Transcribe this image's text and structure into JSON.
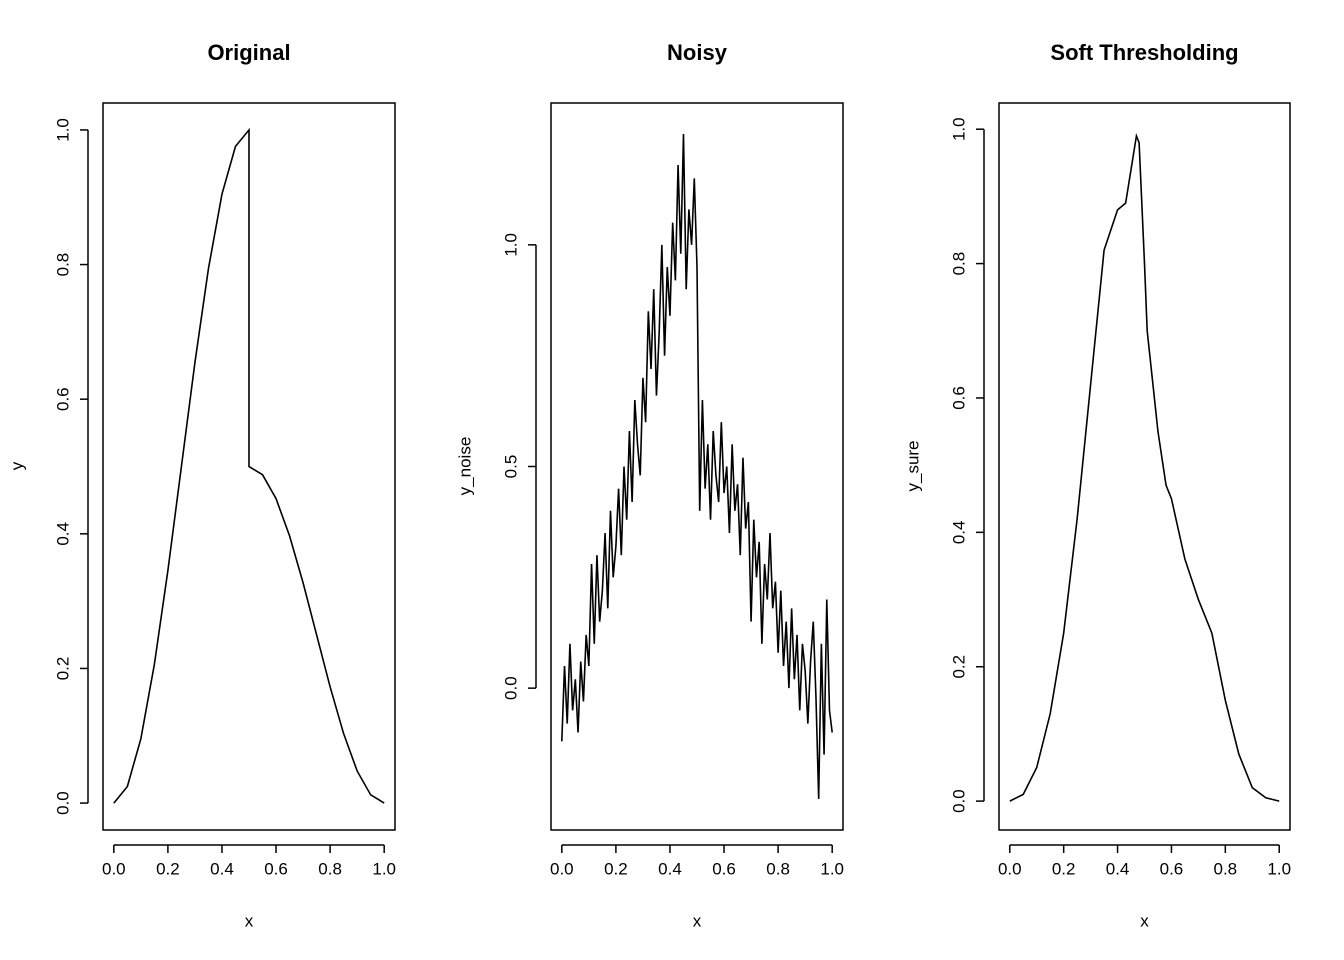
{
  "chart_data": [
    {
      "type": "line",
      "title": "Original",
      "x_label": "x",
      "y_label": "y",
      "x": [
        0,
        0.05,
        0.1,
        0.15,
        0.2,
        0.25,
        0.3,
        0.35,
        0.4,
        0.45,
        0.5,
        0.5,
        0.55,
        0.6,
        0.65,
        0.7,
        0.75,
        0.8,
        0.85,
        0.9,
        0.95,
        1
      ],
      "values": [
        0,
        0.0245,
        0.0955,
        0.2061,
        0.3455,
        0.5,
        0.6545,
        0.7939,
        0.9045,
        0.9755,
        1,
        0.5,
        0.4878,
        0.4523,
        0.3969,
        0.3273,
        0.25,
        0.1727,
        0.1031,
        0.0477,
        0.0122,
        0
      ],
      "color": "#000000",
      "xlim": [
        -0.04,
        1.04
      ],
      "ylim": [
        -0.04,
        1.04
      ],
      "xticks": [
        {
          "value": 0,
          "label": "0.0"
        },
        0.2,
        0.4,
        0.6,
        0.8,
        {
          "value": 1,
          "label": "1.0"
        }
      ],
      "yticks": [
        {
          "value": 0,
          "label": "0.0"
        },
        0.2,
        0.4,
        0.6,
        0.8,
        {
          "value": 1,
          "label": "1.0"
        }
      ]
    },
    {
      "type": "line",
      "title": "Noisy",
      "x_label": "x",
      "y_label": "y_noise",
      "x": [
        0,
        0.01,
        0.02,
        0.03,
        0.04,
        0.05,
        0.06,
        0.07,
        0.08,
        0.09,
        0.1,
        0.11,
        0.12,
        0.13,
        0.14,
        0.15,
        0.16,
        0.17,
        0.18,
        0.19,
        0.2,
        0.21,
        0.22,
        0.23,
        0.24,
        0.25,
        0.26,
        0.27,
        0.28,
        0.29,
        0.3,
        0.31,
        0.32,
        0.33,
        0.34,
        0.35,
        0.36,
        0.37,
        0.38,
        0.39,
        0.4,
        0.41,
        0.42,
        0.43,
        0.44,
        0.45,
        0.46,
        0.47,
        0.48,
        0.49,
        0.5,
        0.51,
        0.52,
        0.53,
        0.54,
        0.55,
        0.56,
        0.57,
        0.58,
        0.59,
        0.6,
        0.61,
        0.62,
        0.63,
        0.64,
        0.65,
        0.66,
        0.67,
        0.68,
        0.69,
        0.7,
        0.71,
        0.72,
        0.73,
        0.74,
        0.75,
        0.76,
        0.77,
        0.78,
        0.79,
        0.8,
        0.81,
        0.82,
        0.83,
        0.84,
        0.85,
        0.86,
        0.87,
        0.88,
        0.89,
        0.9,
        0.91,
        0.92,
        0.93,
        0.94,
        0.95,
        0.96,
        0.97,
        0.98,
        0.99,
        1
      ],
      "values": [
        -0.12,
        0.05,
        -0.08,
        0.1,
        -0.05,
        0.02,
        -0.1,
        0.06,
        -0.03,
        0.12,
        0.05,
        0.28,
        0.1,
        0.3,
        0.15,
        0.22,
        0.35,
        0.18,
        0.4,
        0.25,
        0.32,
        0.45,
        0.3,
        0.5,
        0.38,
        0.58,
        0.42,
        0.65,
        0.55,
        0.48,
        0.7,
        0.6,
        0.85,
        0.72,
        0.9,
        0.66,
        0.8,
        1.0,
        0.75,
        0.95,
        0.84,
        1.05,
        0.92,
        1.18,
        0.98,
        1.25,
        0.9,
        1.08,
        1.0,
        1.15,
        0.95,
        0.4,
        0.65,
        0.45,
        0.55,
        0.38,
        0.58,
        0.48,
        0.42,
        0.6,
        0.44,
        0.5,
        0.35,
        0.55,
        0.4,
        0.46,
        0.3,
        0.52,
        0.36,
        0.42,
        0.15,
        0.38,
        0.25,
        0.33,
        0.1,
        0.28,
        0.2,
        0.35,
        0.18,
        0.24,
        0.08,
        0.22,
        0.05,
        0.15,
        0.0,
        0.18,
        0.02,
        0.12,
        -0.05,
        0.1,
        0.04,
        -0.08,
        0.06,
        0.15,
        -0.02,
        -0.25,
        0.1,
        -0.15,
        0.2,
        -0.05,
        -0.1
      ],
      "color": "#000000",
      "xlim": [
        -0.04,
        1.04
      ],
      "ylim": [
        -0.32,
        1.32
      ],
      "xticks": [
        {
          "value": 0,
          "label": "0.0"
        },
        0.2,
        0.4,
        0.6,
        0.8,
        {
          "value": 1,
          "label": "1.0"
        }
      ],
      "yticks": [
        {
          "value": 0,
          "label": "0.0"
        },
        0.5,
        {
          "value": 1,
          "label": "1.0"
        }
      ]
    },
    {
      "type": "line",
      "title": "Soft Thresholding",
      "x_label": "x",
      "y_label": "y_sure",
      "x": [
        0,
        0.05,
        0.1,
        0.15,
        0.2,
        0.25,
        0.3,
        0.35,
        0.4,
        0.43,
        0.45,
        0.47,
        0.48,
        0.5,
        0.51,
        0.55,
        0.58,
        0.6,
        0.65,
        0.7,
        0.75,
        0.8,
        0.85,
        0.9,
        0.95,
        1
      ],
      "values": [
        0,
        0.01,
        0.05,
        0.13,
        0.25,
        0.42,
        0.62,
        0.82,
        0.88,
        0.89,
        0.94,
        0.99,
        0.98,
        0.8,
        0.7,
        0.55,
        0.47,
        0.45,
        0.36,
        0.3,
        0.25,
        0.15,
        0.07,
        0.02,
        0.005,
        0
      ],
      "color": "#000000",
      "xlim": [
        -0.04,
        1.04
      ],
      "ylim": [
        -0.043,
        1.039
      ],
      "xticks": [
        {
          "value": 0,
          "label": "0.0"
        },
        0.2,
        0.4,
        0.6,
        0.8,
        {
          "value": 1,
          "label": "1.0"
        }
      ],
      "yticks": [
        {
          "value": 0,
          "label": "0.0"
        },
        0.2,
        0.4,
        0.6,
        0.8,
        {
          "value": 1,
          "label": "1.0"
        }
      ]
    }
  ]
}
